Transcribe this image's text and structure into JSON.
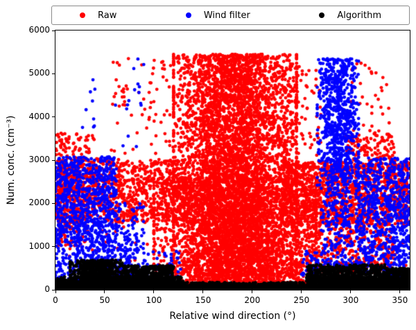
{
  "figure": {
    "background": "#ffffff"
  },
  "chart_data": {
    "type": "scatter",
    "title": "",
    "xlabel": "Relative wind direction (°)",
    "ylabel": "Num. conc. (cm⁻³)",
    "xlim": [
      0,
      360
    ],
    "ylim": [
      0,
      6000
    ],
    "x_ticks": [
      0,
      50,
      100,
      150,
      200,
      250,
      300,
      350
    ],
    "y_ticks": [
      0,
      1000,
      2000,
      3000,
      4000,
      5000,
      6000
    ],
    "grid": false,
    "legend": {
      "position": "top-outside-horizontal",
      "entries": [
        {
          "label": "Raw",
          "color": "#ff0000"
        },
        {
          "label": "Wind filter",
          "color": "#0000ff"
        },
        {
          "label": "Algorithm",
          "color": "#000000"
        }
      ]
    },
    "marker": {
      "shape": "circle",
      "radius": 2.4
    },
    "seed": 42,
    "series": [
      {
        "name": "Raw",
        "color": "#ff0000",
        "clusters": [
          {
            "x_range": [
              120,
              245
            ],
            "y_range": [
              150,
              5450
            ],
            "count": 5200,
            "x_dist": "gauss",
            "y_dist": "uniform"
          },
          {
            "x_range": [
              100,
              265
            ],
            "y_range": [
              200,
              2600
            ],
            "count": 1800,
            "x_dist": "gauss",
            "y_dist": "uniform"
          },
          {
            "x_range": [
              0,
              140
            ],
            "y_range": [
              1550,
              3000
            ],
            "count": 1100,
            "x_dist": "uniform",
            "y_dist": "uniform"
          },
          {
            "x_range": [
              0,
              35
            ],
            "y_range": [
              1000,
              3650
            ],
            "count": 220,
            "x_dist": "uniform",
            "y_dist": "uniform"
          },
          {
            "x_range": [
              230,
              360
            ],
            "y_range": [
              1500,
              2950
            ],
            "count": 1400,
            "x_dist": "uniform",
            "y_dist": "uniform"
          },
          {
            "x_range": [
              235,
              345
            ],
            "y_range": [
              400,
              1550
            ],
            "count": 450,
            "x_dist": "uniform",
            "y_dist": "uniform"
          },
          {
            "x_range": [
              295,
              345
            ],
            "y_range": [
              2950,
              3600
            ],
            "count": 120,
            "x_dist": "uniform",
            "y_dist": "uniform"
          },
          {
            "x_range": [
              300,
              340
            ],
            "y_range": [
              3600,
              5250
            ],
            "count": 35,
            "x_dist": "uniform",
            "y_dist": "uniform"
          },
          {
            "x_range": [
              55,
              120
            ],
            "y_range": [
              3000,
              5400
            ],
            "count": 70,
            "x_dist": "uniform",
            "y_dist": "uniform"
          },
          {
            "x_range": [
              225,
              270
            ],
            "y_range": [
              2900,
              5250
            ],
            "count": 90,
            "x_dist": "uniform",
            "y_dist": "uniform"
          },
          {
            "x_range": [
              0,
              45
            ],
            "y_range": [
              3000,
              3600
            ],
            "count": 25,
            "x_dist": "uniform",
            "y_dist": "uniform"
          },
          {
            "x_range": [
              130,
              265
            ],
            "y_range": [
              0,
              200
            ],
            "count": 150,
            "x_dist": "uniform",
            "y_dist": "uniform"
          },
          {
            "x_range": [
              0,
              360
            ],
            "y_range": [
              250,
              1500
            ],
            "count": 120,
            "x_dist": "uniform",
            "y_dist": "uniform"
          }
        ]
      },
      {
        "name": "Wind filter",
        "color": "#0000ff",
        "clusters": [
          {
            "x_range": [
              0,
              62
            ],
            "y_range": [
              950,
              3080
            ],
            "count": 850,
            "x_dist": "uniform",
            "y_dist": "uniform"
          },
          {
            "x_range": [
              0,
              85
            ],
            "y_range": [
              150,
              950
            ],
            "count": 300,
            "x_dist": "uniform",
            "y_dist": "uniform"
          },
          {
            "x_range": [
              25,
              95
            ],
            "y_range": [
              3300,
              5350
            ],
            "count": 25,
            "x_dist": "uniform",
            "y_dist": "uniform"
          },
          {
            "x_range": [
              266,
              308
            ],
            "y_range": [
              2400,
              5350
            ],
            "count": 800,
            "x_dist": "gauss",
            "y_dist": "uniform"
          },
          {
            "x_range": [
              270,
              302
            ],
            "y_range": [
              450,
              2400
            ],
            "count": 220,
            "x_dist": "uniform",
            "y_dist": "uniform"
          },
          {
            "x_range": [
              305,
              360
            ],
            "y_range": [
              400,
              3050
            ],
            "count": 750,
            "x_dist": "uniform",
            "y_dist": "uniform"
          },
          {
            "x_range": [
              330,
              360
            ],
            "y_range": [
              150,
              400
            ],
            "count": 120,
            "x_dist": "uniform",
            "y_dist": "uniform"
          },
          {
            "x_range": [
              85,
              130
            ],
            "y_range": [
              150,
              900
            ],
            "count": 50,
            "x_dist": "uniform",
            "y_dist": "uniform"
          },
          {
            "x_range": [
              250,
              268
            ],
            "y_range": [
              250,
              900
            ],
            "count": 50,
            "x_dist": "uniform",
            "y_dist": "uniform"
          },
          {
            "x_range": [
              60,
              90
            ],
            "y_range": [
              900,
              2000
            ],
            "count": 80,
            "x_dist": "uniform",
            "y_dist": "uniform"
          }
        ]
      },
      {
        "name": "Algorithm",
        "color": "#000000",
        "clusters": [
          {
            "x_range": [
              0,
              360
            ],
            "y_range": [
              0,
              170
            ],
            "count": 2600,
            "x_dist": "uniform",
            "y_dist": "bottom"
          },
          {
            "x_range": [
              0,
              130
            ],
            "y_range": [
              0,
              300
            ],
            "count": 1100,
            "x_dist": "uniform",
            "y_dist": "bottom"
          },
          {
            "x_range": [
              255,
              360
            ],
            "y_range": [
              0,
              300
            ],
            "count": 900,
            "x_dist": "uniform",
            "y_dist": "bottom"
          },
          {
            "x_range": [
              15,
              70
            ],
            "y_range": [
              0,
              690
            ],
            "count": 750,
            "x_dist": "gauss",
            "y_dist": "uniform"
          },
          {
            "x_range": [
              70,
              120
            ],
            "y_range": [
              0,
              560
            ],
            "count": 550,
            "x_dist": "uniform",
            "y_dist": "uniform"
          },
          {
            "x_range": [
              255,
              335
            ],
            "y_range": [
              0,
              580
            ],
            "count": 750,
            "x_dist": "uniform",
            "y_dist": "uniform"
          },
          {
            "x_range": [
              335,
              360
            ],
            "y_range": [
              0,
              500
            ],
            "count": 280,
            "x_dist": "uniform",
            "y_dist": "uniform"
          },
          {
            "x_range": [
              130,
              260
            ],
            "y_range": [
              0,
              95
            ],
            "count": 1100,
            "x_dist": "uniform",
            "y_dist": "bottom"
          }
        ]
      }
    ]
  }
}
